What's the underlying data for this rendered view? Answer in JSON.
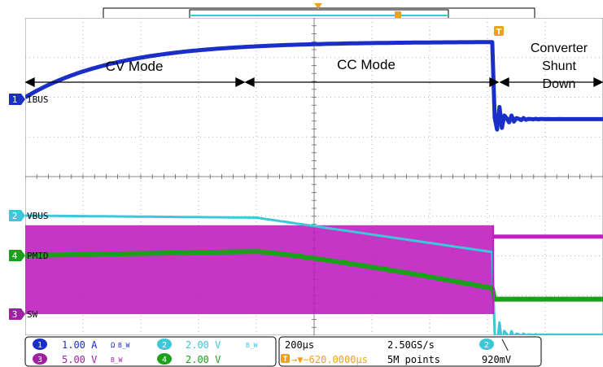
{
  "chart_data": {
    "type": "line",
    "title": "",
    "xlabel": "",
    "ylabel": "",
    "x": [
      0,
      2,
      4,
      6,
      8,
      10
    ],
    "grid": true,
    "series": [
      {
        "name": "IBUS",
        "channel": "1",
        "color": "#1a2fc8",
        "values": [
          0.0,
          1.0,
          1.35,
          1.42,
          1.45,
          -0.5
        ]
      },
      {
        "name": "VBUS",
        "channel": "2",
        "color": "#3cc8d8",
        "values": [
          0.0,
          -0.05,
          -0.1,
          -0.4,
          -0.9,
          -3.0
        ]
      },
      {
        "name": "PMID",
        "channel": "4",
        "color": "#1aa01a",
        "values": [
          0.0,
          0.05,
          0.1,
          -0.35,
          -0.8,
          -1.1
        ]
      },
      {
        "name": "SW",
        "channel": "3",
        "color": "#c020c0",
        "values": [
          4.0,
          4.0,
          4.0,
          3.9,
          3.6,
          0.0
        ]
      }
    ],
    "annotations": [
      {
        "text": "CV Mode"
      },
      {
        "text": "CC Mode"
      },
      {
        "line1": "Converter",
        "line2": "Shunt",
        "line3": "Down"
      }
    ],
    "channel_labels": [
      {
        "num": "1",
        "name": "IBUS",
        "color": "#1a2fc8"
      },
      {
        "num": "2",
        "name": "VBUS",
        "color": "#3cc8d8"
      },
      {
        "num": "4",
        "name": "PMID",
        "color": "#1aa01a"
      },
      {
        "num": "3",
        "name": "SW",
        "color": "#a020a0"
      }
    ],
    "trigger_marker": "T"
  },
  "settings": {
    "ch1": {
      "num": "1",
      "scale": "1.00 A",
      "color": "#1a2fc8",
      "flag": "Ω",
      "bw": "B_W"
    },
    "ch2": {
      "num": "2",
      "scale": "2.00 V",
      "color": "#3cc8d8",
      "bw": "B_W"
    },
    "ch3": {
      "num": "3",
      "scale": "5.00 V",
      "color": "#a020a0",
      "bw": "B_W"
    },
    "ch4": {
      "num": "4",
      "scale": "2.00 V",
      "color": "#1aa01a"
    },
    "timebase": "200µs",
    "trigger_delay": "→▼−620.0000µs",
    "trigger_label": "T",
    "sample_rate": "2.50GS/s",
    "record_length": "5M points",
    "trig_channel": "2",
    "trig_slope": "╲",
    "trig_level": "920mV"
  }
}
